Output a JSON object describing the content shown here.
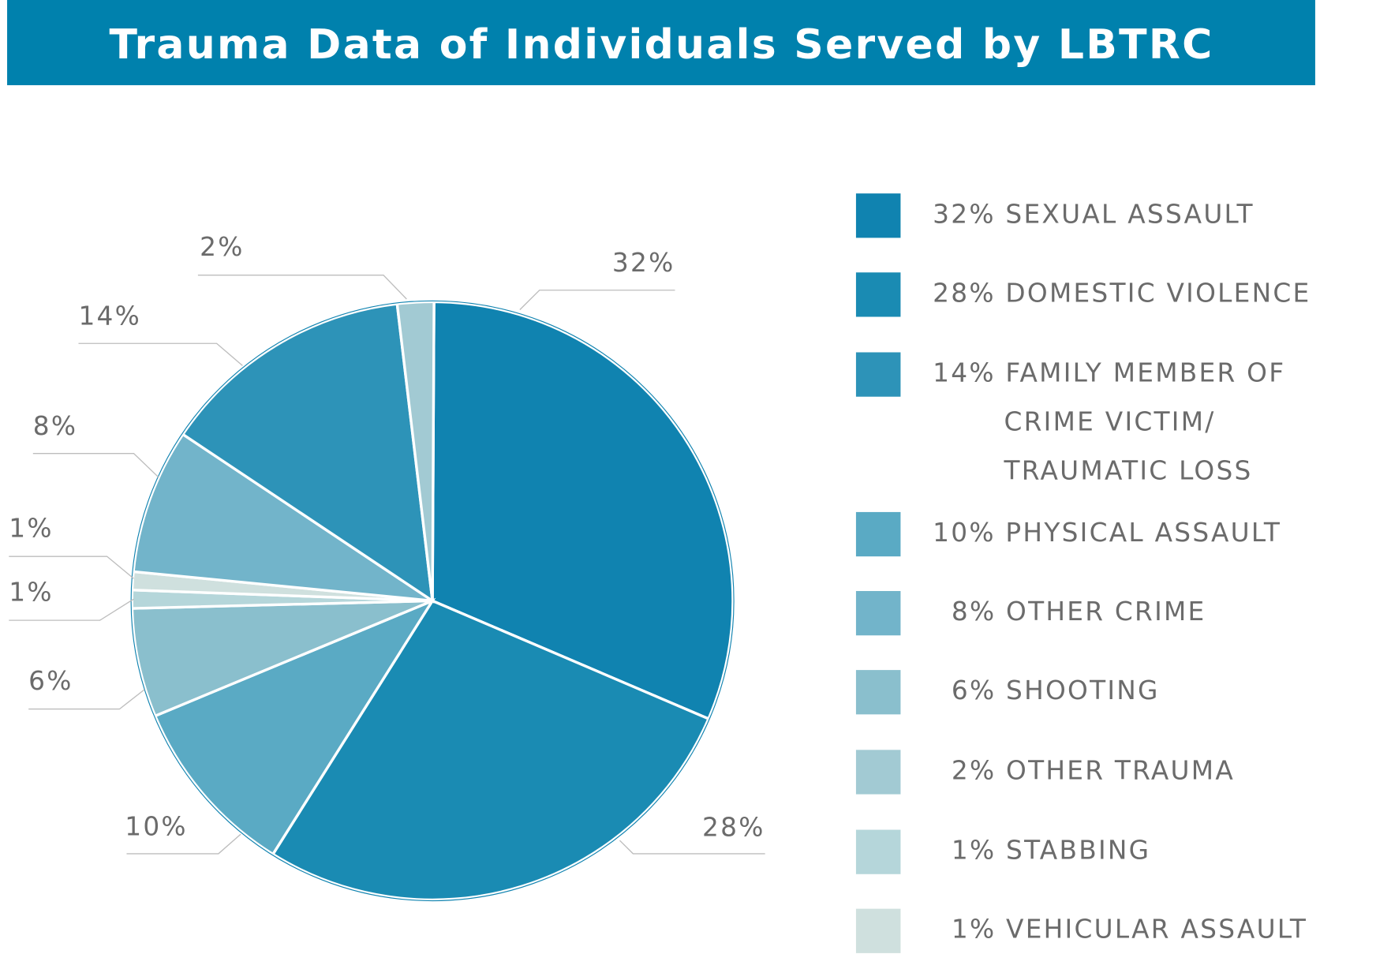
{
  "chart_data": {
    "type": "pie",
    "title": "Trauma Data of Individuals Served by LBTRC",
    "legend_position": "right",
    "title_bar_color": "#0081ad",
    "slices": [
      {
        "label": "SEXUAL ASSAULT",
        "value": 32,
        "data_label": "32%",
        "legend": [
          "32% SEXUAL ASSAULT"
        ],
        "color": "#1083b0"
      },
      {
        "label": "DOMESTIC VIOLENCE",
        "value": 28,
        "data_label": "28%",
        "legend": [
          "28% DOMESTIC VIOLENCE"
        ],
        "color": "#1a8bb3"
      },
      {
        "label": "PHYSICAL ASSAULT",
        "value": 10,
        "data_label": "10%",
        "legend": [
          "10% PHYSICAL ASSAULT"
        ],
        "color": "#5aaac4"
      },
      {
        "label": "SHOOTING",
        "value": 6,
        "data_label": "6%",
        "legend": [
          "6% SHOOTING"
        ],
        "color": "#8abfcd"
      },
      {
        "label": "STABBING",
        "value": 1,
        "data_label": "1%",
        "legend": [
          "1% STABBING"
        ],
        "color": "#b5d6da"
      },
      {
        "label": "VEHICULAR ASSAULT",
        "value": 1,
        "data_label": "1%",
        "legend": [
          "1% VEHICULAR ASSAULT"
        ],
        "color": "#cfe0de"
      },
      {
        "label": "OTHER CRIME",
        "value": 8,
        "data_label": "8%",
        "legend": [
          "8% OTHER CRIME"
        ],
        "color": "#72b4ca"
      },
      {
        "label": "FAMILY MEMBER OF CRIME VICTIM/ TRAUMATIC LOSS",
        "value": 14,
        "data_label": "14%",
        "legend": [
          "14% FAMILY MEMBER OF",
          "CRIME VICTIM/",
          "TRAUMATIC LOSS"
        ],
        "color": "#2d93b8"
      },
      {
        "label": "OTHER TRAUMA",
        "value": 2,
        "data_label": "2%",
        "legend": [
          "2% OTHER TRAUMA"
        ],
        "color": "#a2cad3"
      }
    ],
    "legend_order": [
      0,
      1,
      7,
      2,
      6,
      3,
      8,
      4,
      5
    ]
  }
}
